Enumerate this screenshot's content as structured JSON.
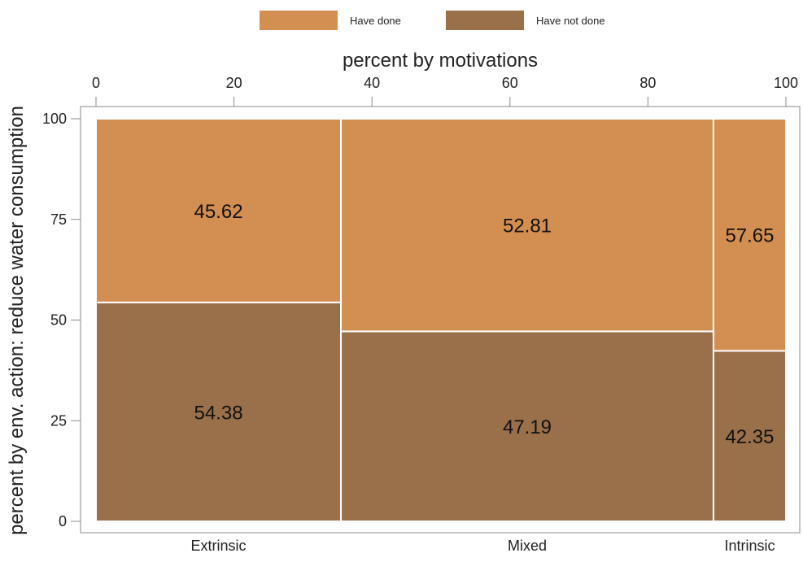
{
  "chart_data": {
    "type": "mosaic",
    "title": "",
    "xlabel": "percent by motivations",
    "ylabel": "percent by env. action: reduce water consumption",
    "xlim": [
      0,
      100
    ],
    "ylim": [
      0,
      100
    ],
    "x_ticks": [
      0,
      20,
      40,
      60,
      80,
      100
    ],
    "y_ticks": [
      0,
      25,
      50,
      75,
      100
    ],
    "legend_position": "top",
    "colors": {
      "have_done": "#D38E51",
      "have_not_done": "#9A704B",
      "divider": "#ffffff",
      "axis": "#888888"
    },
    "legend": [
      {
        "label": "Have done",
        "color": "#D38E51"
      },
      {
        "label": "Have not done",
        "color": "#9A704B"
      }
    ],
    "categories": [
      {
        "name": "Extrinsic",
        "share": 35.5,
        "have_not_done": 54.38,
        "have_done": 45.62
      },
      {
        "name": "Mixed",
        "share": 54.0,
        "have_not_done": 47.19,
        "have_done": 52.81
      },
      {
        "name": "Intrinsic",
        "share": 10.5,
        "have_not_done": 42.35,
        "have_done": 57.65
      }
    ]
  }
}
